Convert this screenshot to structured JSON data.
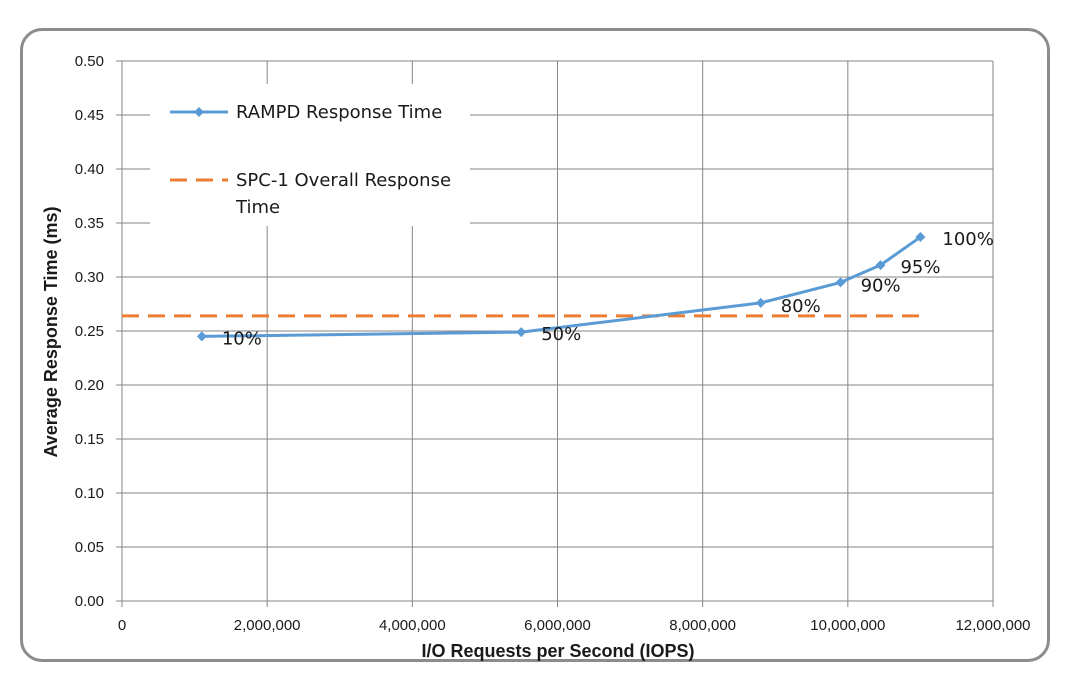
{
  "chart_data": {
    "type": "line",
    "title": "",
    "xlabel": "I/O Requests per Second (IOPS)",
    "ylabel": "Average Response Time (ms)",
    "xlim": [
      0,
      12000000
    ],
    "ylim": [
      0,
      0.5
    ],
    "x_ticks": [
      "0",
      "2,000,000",
      "4,000,000",
      "6,000,000",
      "8,000,000",
      "10,000,000",
      "12,000,000"
    ],
    "y_ticks": [
      "0.00",
      "0.05",
      "0.10",
      "0.15",
      "0.20",
      "0.25",
      "0.30",
      "0.35",
      "0.40",
      "0.45",
      "0.50"
    ],
    "x_tick_values": [
      0,
      2000000,
      4000000,
      6000000,
      8000000,
      10000000,
      12000000
    ],
    "y_tick_values": [
      0,
      0.05,
      0.1,
      0.15,
      0.2,
      0.25,
      0.3,
      0.35,
      0.4,
      0.45,
      0.5
    ],
    "grid": true,
    "legend_position": "top-left",
    "series": [
      {
        "name": "RAMPD Response Time",
        "color": "#5b9bd5",
        "marker": "diamond",
        "x": [
          1100000,
          5500000,
          8800000,
          9900000,
          10450000,
          11000000
        ],
        "y": [
          0.245,
          0.249,
          0.276,
          0.295,
          0.311,
          0.337
        ],
        "labels": [
          "10%",
          "50%",
          "80%",
          "90%",
          "95%",
          "100%"
        ]
      },
      {
        "name": "SPC-1 Overall Response Time",
        "color": "#ed7d31",
        "style": "dashed",
        "x": [
          0,
          11000000
        ],
        "y": [
          0.264,
          0.264
        ]
      }
    ],
    "legend": {
      "entries": [
        {
          "lines": [
            "RAMPD Response Time"
          ]
        },
        {
          "lines": [
            "SPC-1 Overall Response",
            "Time"
          ]
        }
      ]
    }
  }
}
